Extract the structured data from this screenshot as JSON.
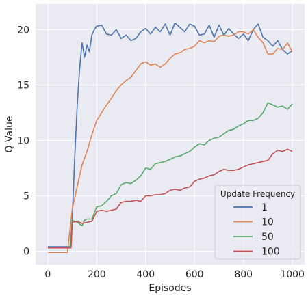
{
  "chart_data": {
    "type": "line",
    "xlabel": "Episodes",
    "ylabel": "Q Value",
    "xlim": [
      -50,
      1050
    ],
    "ylim": [
      -1.2,
      22.3
    ],
    "xticks": [
      0,
      200,
      400,
      600,
      800,
      1000
    ],
    "yticks": [
      0,
      5,
      10,
      15,
      20
    ],
    "grid": true,
    "legend": {
      "title": "Update Frequency",
      "placement": "lower-right"
    },
    "series": [
      {
        "name": "1",
        "color": "#4c72b0",
        "x": [
          0,
          20,
          40,
          60,
          80,
          95,
          100,
          110,
          120,
          130,
          140,
          150,
          160,
          170,
          180,
          190,
          200,
          220,
          240,
          260,
          280,
          300,
          320,
          340,
          360,
          380,
          400,
          420,
          440,
          460,
          480,
          500,
          520,
          540,
          560,
          580,
          600,
          620,
          640,
          660,
          680,
          700,
          720,
          740,
          760,
          780,
          800,
          820,
          840,
          860,
          880,
          900,
          920,
          940,
          960,
          980,
          1000
        ],
        "y": [
          0.4,
          0.4,
          0.4,
          0.4,
          0.4,
          0.4,
          3.0,
          8.5,
          13.0,
          16.5,
          18.8,
          17.5,
          18.6,
          18.0,
          19.5,
          20.0,
          20.3,
          20.4,
          19.6,
          19.5,
          20.0,
          19.2,
          19.5,
          19.0,
          19.2,
          19.8,
          20.1,
          19.6,
          20.2,
          19.8,
          20.5,
          19.5,
          20.6,
          20.2,
          19.8,
          20.5,
          20.3,
          19.5,
          19.6,
          20.4,
          19.3,
          20.4,
          19.5,
          20.1,
          19.6,
          19.2,
          19.6,
          19.0,
          20.0,
          20.5,
          19.3,
          19.0,
          18.5,
          19.0,
          18.2,
          17.8,
          18.1
        ]
      },
      {
        "name": "10",
        "color": "#dd8452",
        "x": [
          0,
          20,
          40,
          60,
          80,
          90,
          100,
          120,
          140,
          160,
          180,
          200,
          220,
          240,
          260,
          280,
          300,
          320,
          340,
          360,
          380,
          400,
          420,
          440,
          460,
          480,
          500,
          520,
          540,
          560,
          580,
          600,
          620,
          640,
          660,
          680,
          700,
          720,
          740,
          760,
          780,
          800,
          820,
          840,
          860,
          880,
          900,
          920,
          940,
          960,
          980,
          1000
        ],
        "y": [
          -0.1,
          -0.1,
          -0.1,
          -0.1,
          -0.1,
          1.8,
          3.8,
          5.8,
          7.8,
          9.0,
          10.5,
          11.8,
          12.5,
          13.2,
          13.8,
          14.5,
          15.0,
          15.4,
          15.7,
          16.3,
          16.9,
          17.1,
          16.8,
          16.9,
          16.6,
          16.9,
          17.4,
          17.8,
          17.9,
          18.2,
          18.3,
          18.5,
          19.0,
          18.8,
          19.0,
          18.9,
          19.4,
          19.5,
          19.4,
          19.5,
          19.8,
          19.8,
          19.6,
          20.0,
          19.3,
          18.8,
          17.8,
          17.8,
          18.3,
          18.2,
          18.8,
          18.0
        ]
      },
      {
        "name": "50",
        "color": "#55a868",
        "x": [
          0,
          50,
          90,
          100,
          110,
          120,
          140,
          150,
          160,
          180,
          200,
          220,
          240,
          260,
          280,
          300,
          320,
          340,
          360,
          380,
          400,
          420,
          440,
          460,
          480,
          500,
          520,
          540,
          560,
          580,
          600,
          620,
          640,
          660,
          680,
          700,
          720,
          740,
          760,
          780,
          800,
          820,
          840,
          860,
          880,
          900,
          920,
          940,
          960,
          980,
          1000
        ],
        "y": [
          0.3,
          0.3,
          0.3,
          2.8,
          2.7,
          2.6,
          2.3,
          2.8,
          2.9,
          2.9,
          4.0,
          4.1,
          4.5,
          5.0,
          5.2,
          6.0,
          6.2,
          6.1,
          6.4,
          6.8,
          7.5,
          7.4,
          7.9,
          8.0,
          8.1,
          8.3,
          8.5,
          8.6,
          8.8,
          9.0,
          9.4,
          9.7,
          9.6,
          10.0,
          10.2,
          10.3,
          10.6,
          10.9,
          11.0,
          11.3,
          11.5,
          11.8,
          11.8,
          12.0,
          12.5,
          13.4,
          13.2,
          13.0,
          13.1,
          12.8,
          13.3
        ]
      },
      {
        "name": "100",
        "color": "#c44e52",
        "x": [
          0,
          50,
          95,
          100,
          120,
          140,
          160,
          180,
          200,
          220,
          240,
          260,
          280,
          300,
          320,
          340,
          360,
          380,
          400,
          420,
          440,
          460,
          480,
          500,
          520,
          540,
          560,
          580,
          600,
          620,
          640,
          660,
          680,
          700,
          720,
          740,
          760,
          780,
          800,
          820,
          840,
          860,
          880,
          900,
          920,
          940,
          960,
          980,
          1000
        ],
        "y": [
          0.3,
          0.3,
          0.3,
          2.6,
          2.7,
          2.5,
          2.6,
          2.7,
          3.6,
          3.7,
          3.6,
          3.7,
          3.8,
          4.4,
          4.5,
          4.5,
          4.6,
          4.5,
          5.0,
          5.0,
          5.1,
          5.1,
          5.2,
          5.5,
          5.6,
          5.5,
          5.7,
          5.8,
          6.3,
          6.5,
          6.6,
          6.8,
          6.9,
          7.2,
          7.4,
          7.3,
          7.3,
          7.4,
          7.6,
          7.8,
          7.9,
          8.0,
          8.1,
          8.2,
          8.8,
          9.1,
          9.0,
          9.2,
          9.0
        ]
      }
    ]
  }
}
